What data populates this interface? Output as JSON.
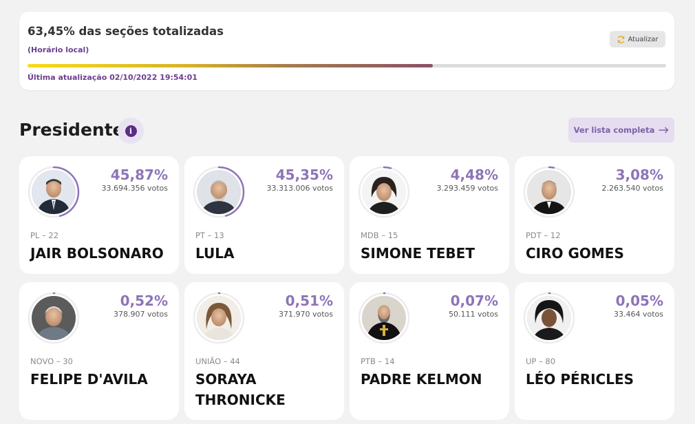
{
  "status": {
    "title": "63,45% das seções totalizadas",
    "subtitle": "(Horário local)",
    "refresh_label": "Atualizar",
    "progress": 0.6345,
    "last_update": "Última atualização 02/10/2022 19:54:01"
  },
  "section": {
    "title": "Presidente",
    "info_icon": "info-icon",
    "full_list_label": "Ver lista completa",
    "full_list_icon": "arrow-right-icon"
  },
  "colors": {
    "accent": "#8d74b8",
    "ring": "#8d74b8",
    "progress_start": "#f6db17",
    "progress_end": "#8a5068",
    "brand_dark": "#5a2d86"
  },
  "candidates": [
    {
      "percent": "45,87%",
      "share": 0.4587,
      "votes": "33.694.356 votos",
      "party": "PL – 22",
      "name": "JAIR BOLSONARO"
    },
    {
      "percent": "45,35%",
      "share": 0.4535,
      "votes": "33.313.006 votos",
      "party": "PT – 13",
      "name": "LULA"
    },
    {
      "percent": "4,48%",
      "share": 0.0448,
      "votes": "3.293.459 votos",
      "party": "MDB – 15",
      "name": "SIMONE TEBET"
    },
    {
      "percent": "3,08%",
      "share": 0.0308,
      "votes": "2.263.540 votos",
      "party": "PDT – 12",
      "name": "CIRO GOMES"
    },
    {
      "percent": "0,52%",
      "share": 0.0052,
      "votes": "378.907 votos",
      "party": "NOVO – 30",
      "name": "FELIPE D'AVILA"
    },
    {
      "percent": "0,51%",
      "share": 0.0051,
      "votes": "371.970 votos",
      "party": "UNIÃO – 44",
      "name": "SORAYA THRONICKE"
    },
    {
      "percent": "0,07%",
      "share": 0.0007,
      "votes": "50.111 votos",
      "party": "PTB – 14",
      "name": "PADRE KELMON"
    },
    {
      "percent": "0,05%",
      "share": 0.0005,
      "votes": "33.464 votos",
      "party": "UP – 80",
      "name": "LÉO PÉRICLES"
    }
  ]
}
